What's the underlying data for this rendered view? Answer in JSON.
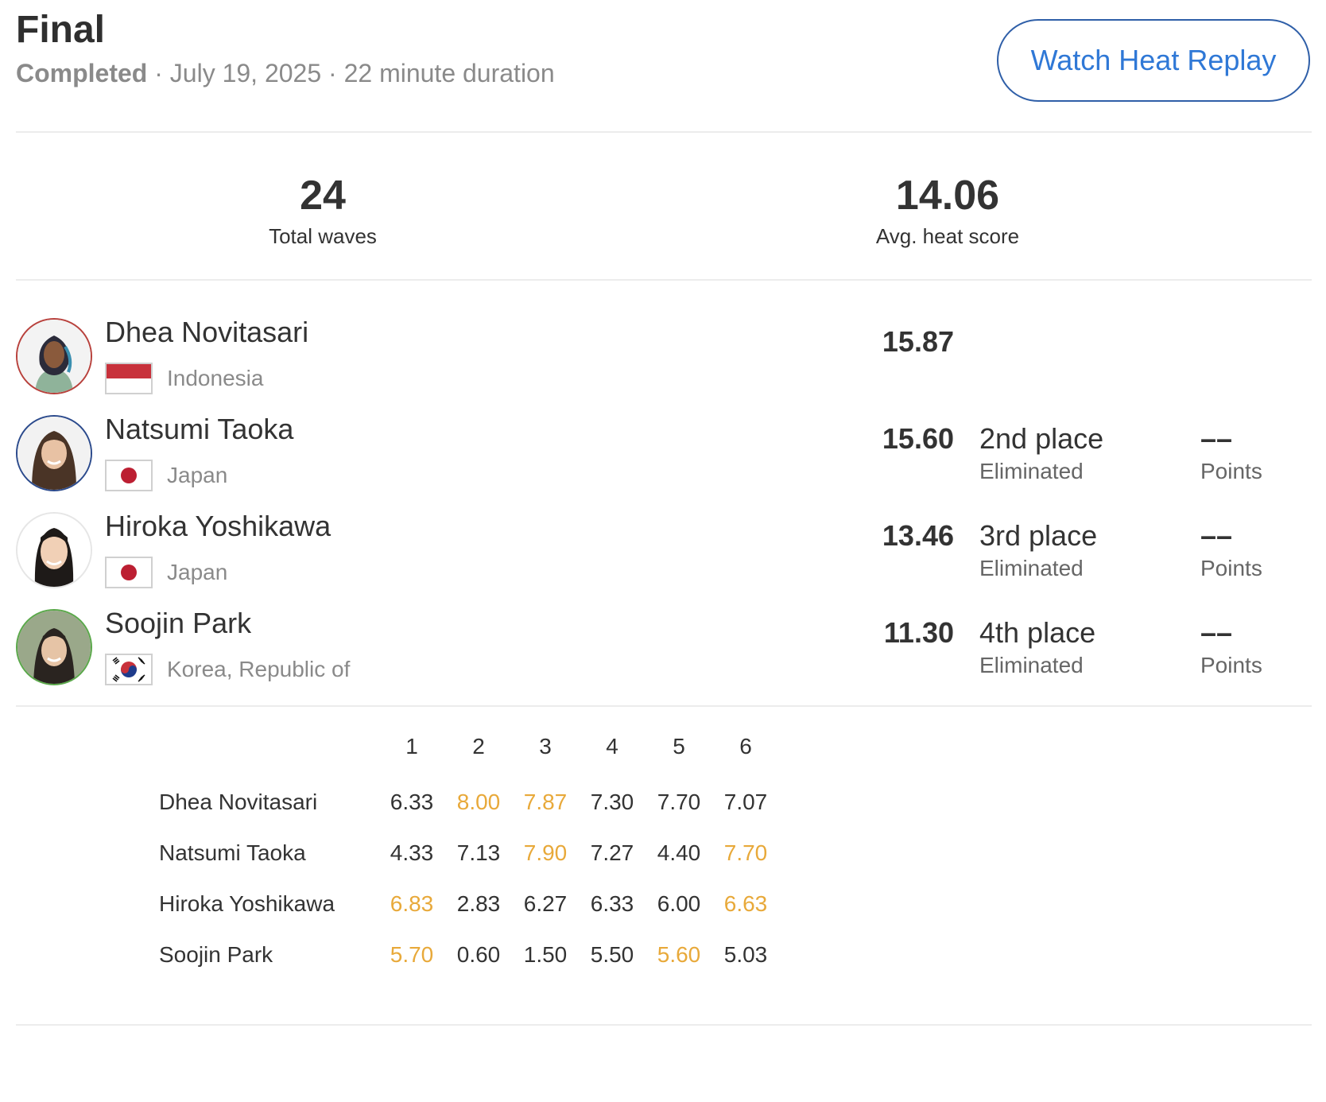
{
  "header": {
    "title": "Final",
    "status": "Completed",
    "separator": "·",
    "date": "July 19, 2025",
    "duration": "22 minute duration",
    "replay_button": "Watch Heat Replay"
  },
  "stats": {
    "total_waves": {
      "value": "24",
      "label": "Total waves"
    },
    "avg_heat_score": {
      "value": "14.06",
      "label": "Avg. heat score"
    }
  },
  "athletes": [
    {
      "name": "Dhea Novitasari",
      "country": "Indonesia",
      "flag": "indonesia-flag",
      "ring_color": "#b8413c",
      "total": "15.87",
      "place": "",
      "place_status": "",
      "points": "",
      "points_label": ""
    },
    {
      "name": "Natsumi Taoka",
      "country": "Japan",
      "flag": "japan-flag",
      "ring_color": "#2b4a8c",
      "total": "15.60",
      "place": "2nd place",
      "place_status": "Eliminated",
      "points": "––",
      "points_label": "Points"
    },
    {
      "name": "Hiroka Yoshikawa",
      "country": "Japan",
      "flag": "japan-flag",
      "ring_color": "#e6e6e6",
      "total": "13.46",
      "place": "3rd place",
      "place_status": "Eliminated",
      "points": "––",
      "points_label": "Points"
    },
    {
      "name": "Soojin Park",
      "country": "Korea, Republic of",
      "flag": "korea-flag",
      "ring_color": "#5aa84a",
      "total": "11.30",
      "place": "4th place",
      "place_status": "Eliminated",
      "points": "––",
      "points_label": "Points"
    }
  ],
  "wave_table": {
    "wave_numbers": [
      "1",
      "2",
      "3",
      "4",
      "5",
      "6"
    ],
    "rows": [
      {
        "name": "Dhea Novitasari",
        "scores": [
          "6.33",
          "8.00",
          "7.87",
          "7.30",
          "7.70",
          "7.07"
        ],
        "counting": [
          false,
          true,
          true,
          false,
          false,
          false
        ]
      },
      {
        "name": "Natsumi Taoka",
        "scores": [
          "4.33",
          "7.13",
          "7.90",
          "7.27",
          "4.40",
          "7.70"
        ],
        "counting": [
          false,
          false,
          true,
          false,
          false,
          true
        ]
      },
      {
        "name": "Hiroka Yoshikawa",
        "scores": [
          "6.83",
          "2.83",
          "6.27",
          "6.33",
          "6.00",
          "6.63"
        ],
        "counting": [
          true,
          false,
          false,
          false,
          false,
          true
        ]
      },
      {
        "name": "Soojin Park",
        "scores": [
          "5.70",
          "0.60",
          "1.50",
          "5.50",
          "5.60",
          "5.03"
        ],
        "counting": [
          true,
          false,
          false,
          false,
          true,
          false
        ]
      }
    ]
  },
  "colors": {
    "accent": "#2f78d6",
    "counting_wave": "#e8a93a",
    "muted_text": "#8a8a8a"
  }
}
